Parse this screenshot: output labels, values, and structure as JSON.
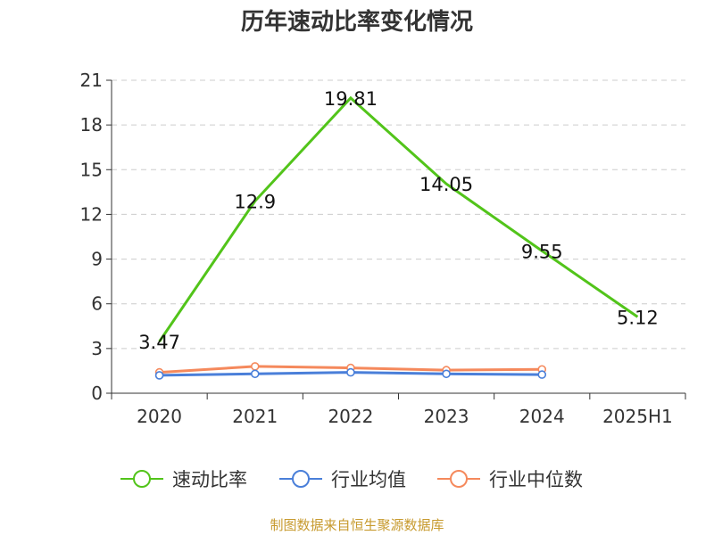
{
  "title": "历年速动比率变化情况",
  "source_note": "制图数据来自恒生聚源数据库",
  "chart_data": {
    "type": "line",
    "categories": [
      "2020",
      "2021",
      "2022",
      "2023",
      "2024",
      "2025H1"
    ],
    "ylim": [
      0,
      21
    ],
    "yticks": [
      0,
      3,
      6,
      9,
      12,
      15,
      18,
      21
    ],
    "grid": true,
    "legend_position": "bottom",
    "series": [
      {
        "name": "速动比率",
        "color": "#52c41a",
        "values": [
          3.47,
          12.9,
          19.81,
          14.05,
          9.55,
          5.12
        ],
        "labels": [
          "3.47",
          "12.9",
          "19.81",
          "14.05",
          "9.55",
          "5.12"
        ]
      },
      {
        "name": "行业均值",
        "color": "#4a7fd9",
        "values": [
          1.2,
          1.3,
          1.4,
          1.3,
          1.25,
          null
        ]
      },
      {
        "name": "行业中位数",
        "color": "#f5895c",
        "values": [
          1.4,
          1.8,
          1.7,
          1.55,
          1.6,
          null
        ]
      }
    ]
  }
}
